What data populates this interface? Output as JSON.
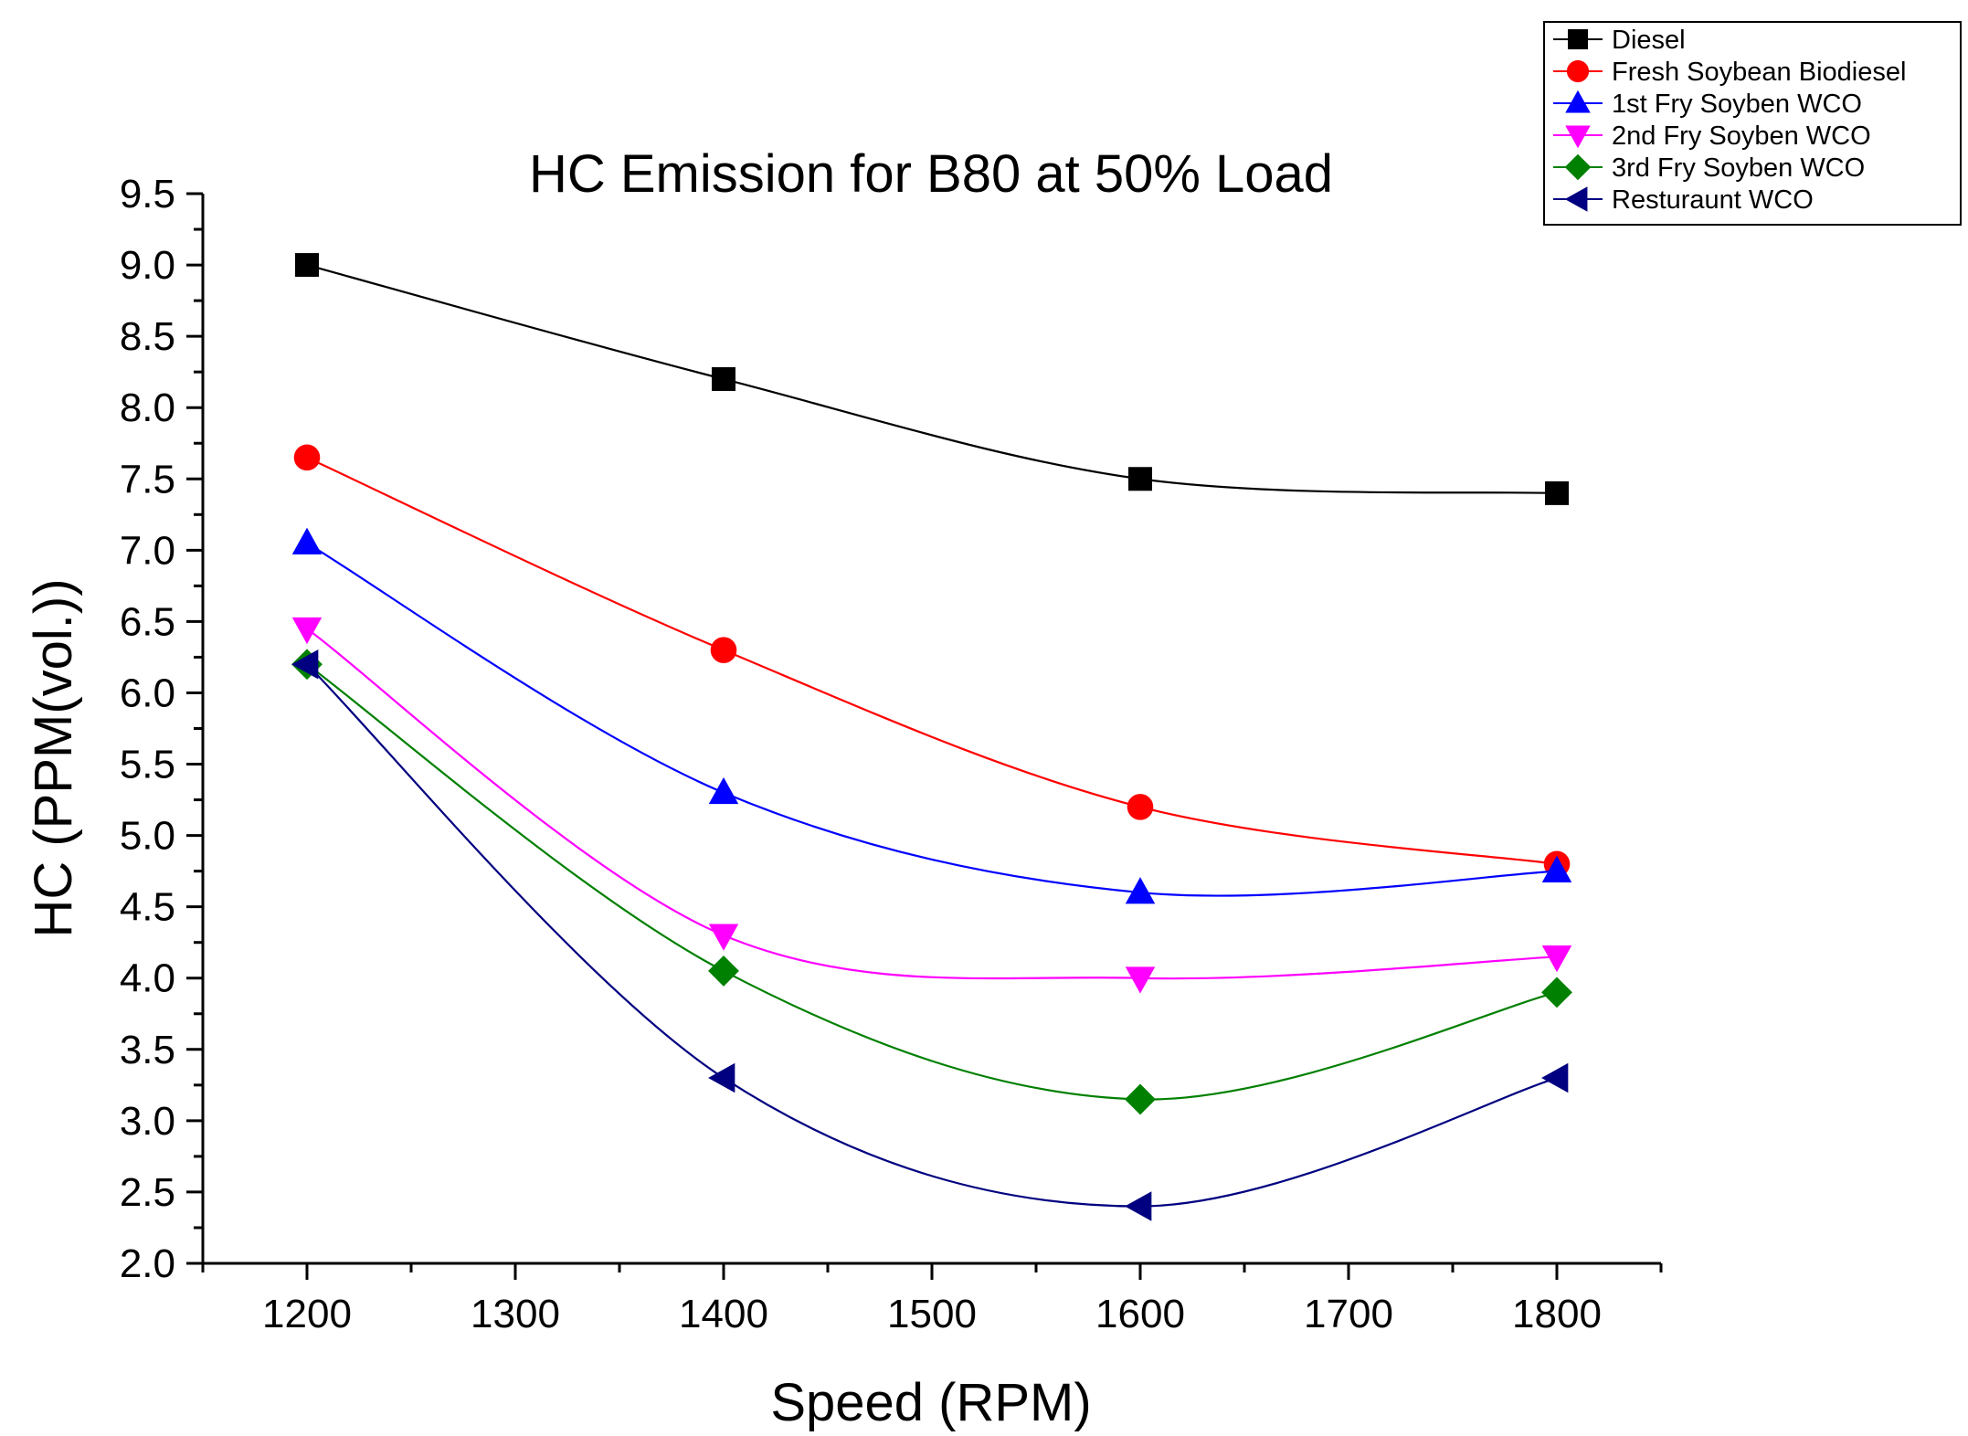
{
  "chart_data": {
    "type": "line",
    "title": "HC Emission for B80 at 50% Load",
    "xlabel": "Speed (RPM)",
    "ylabel": "HC (PPM(vol.))",
    "x": [
      1200,
      1400,
      1600,
      1800
    ],
    "xlim": [
      1150,
      1850
    ],
    "ylim": [
      2.0,
      9.5
    ],
    "x_ticks": [
      1200,
      1300,
      1400,
      1500,
      1600,
      1700,
      1800
    ],
    "y_ticks": [
      2.0,
      2.5,
      3.0,
      3.5,
      4.0,
      4.5,
      5.0,
      5.5,
      6.0,
      6.5,
      7.0,
      7.5,
      8.0,
      8.5,
      9.0,
      9.5
    ],
    "x_tick_labels": [
      "1200",
      "1300",
      "1400",
      "1500",
      "1600",
      "1700",
      "1800"
    ],
    "y_tick_labels": [
      "2.0",
      "2.5",
      "3.0",
      "3.5",
      "4.0",
      "4.5",
      "5.0",
      "5.5",
      "6.0",
      "6.5",
      "7.0",
      "7.5",
      "8.0",
      "8.5",
      "9.0",
      "9.5"
    ],
    "grid": false,
    "smooth_lines": true,
    "legend_position": "top-right",
    "series": [
      {
        "name": "Diesel",
        "values": [
          9.0,
          8.2,
          7.5,
          7.4
        ],
        "color": "#000000",
        "marker": "square"
      },
      {
        "name": "Fresh Soybean Biodiesel",
        "values": [
          7.65,
          6.3,
          5.2,
          4.8
        ],
        "color": "#ff0000",
        "marker": "circle"
      },
      {
        "name": "1st Fry Soyben WCO",
        "values": [
          7.05,
          5.3,
          4.6,
          4.75
        ],
        "color": "#0000ff",
        "marker": "triangle-up"
      },
      {
        "name": "2nd Fry Soyben WCO",
        "values": [
          6.45,
          4.3,
          4.0,
          4.15
        ],
        "color": "#ff00ff",
        "marker": "triangle-down"
      },
      {
        "name": "3rd Fry Soyben WCO",
        "values": [
          6.2,
          4.05,
          3.15,
          3.9
        ],
        "color": "#008000",
        "marker": "diamond"
      },
      {
        "name": "Resturaunt WCO",
        "values": [
          6.2,
          3.3,
          2.4,
          3.3
        ],
        "color": "#000080",
        "marker": "triangle-left"
      }
    ]
  }
}
